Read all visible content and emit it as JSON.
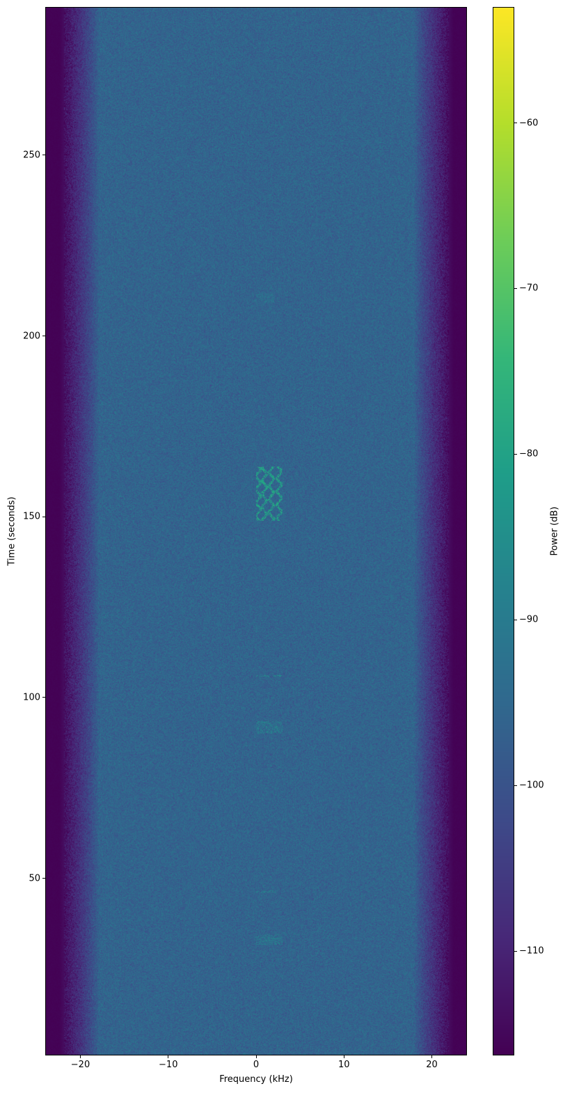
{
  "chart_data": {
    "type": "heatmap",
    "title": "",
    "xlabel": "Frequency (kHz)",
    "ylabel": "Time (seconds)",
    "xlim": [
      -24,
      24
    ],
    "ylim": [
      1,
      291
    ],
    "xticks": [
      -20,
      -10,
      0,
      10,
      20
    ],
    "xtick_labels": [
      "−20",
      "−10",
      "0",
      "10",
      "20"
    ],
    "yticks": [
      50,
      100,
      150,
      200,
      250
    ],
    "ytick_labels": [
      "50",
      "100",
      "150",
      "200",
      "250"
    ],
    "grid": false,
    "colormap": "viridis",
    "colorbar": {
      "label": "Power (dB)",
      "range": [
        -116.3,
        -53
      ],
      "ticks": [
        -110,
        -100,
        -90,
        -80,
        -70,
        -60
      ],
      "tick_labels": [
        "−110",
        "−100",
        "−90",
        "−80",
        "−70",
        "−60"
      ]
    },
    "background_level_db": -96,
    "passband_edge_khz": 18,
    "noise_floor_edge_db": -116,
    "signal_features": [
      {
        "kind": "burst",
        "freq_khz": [
          0,
          3
        ],
        "time_s": [
          149,
          164
        ],
        "level_db": -80
      },
      {
        "kind": "tone",
        "freq_khz": [
          0,
          3
        ],
        "time_s": [
          105.8,
          106.3
        ],
        "level_db": -86
      },
      {
        "kind": "tone",
        "freq_khz": [
          0,
          3
        ],
        "time_s": [
          90,
          93.5
        ],
        "level_db": -89
      },
      {
        "kind": "tone",
        "freq_khz": [
          0,
          2.5
        ],
        "time_s": [
          46,
          46.5
        ],
        "level_db": -88
      },
      {
        "kind": "tone",
        "freq_khz": [
          0,
          3
        ],
        "time_s": [
          31.5,
          34.5
        ],
        "level_db": -90
      },
      {
        "kind": "tone",
        "freq_khz": [
          0,
          2
        ],
        "time_s": [
          209.5,
          212
        ],
        "level_db": -92
      }
    ]
  }
}
